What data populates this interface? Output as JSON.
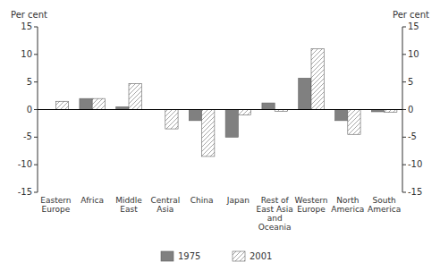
{
  "chart_data": {
    "type": "bar",
    "categories": [
      "Eastern\nEurope",
      "Africa",
      "Middle\nEast",
      "Central\nAsia",
      "China",
      "Japan",
      "Rest of\nEast Asia\nand\nOceania",
      "Western\nEurope",
      "North\nAmerica",
      "South\nAmerica"
    ],
    "series": [
      {
        "name": "1975",
        "color": "#808080",
        "values": [
          0.0,
          2.0,
          0.5,
          0.0,
          -2.0,
          -5.0,
          1.2,
          5.7,
          -2.0,
          -0.4
        ]
      },
      {
        "name": "2001",
        "color": "#909090",
        "values": [
          1.5,
          2.0,
          4.7,
          -3.5,
          -8.5,
          -1.0,
          -0.3,
          11.0,
          -4.5,
          -0.5
        ]
      }
    ],
    "ylabel": "Per cent",
    "y2label": "Per cent",
    "ylim": [
      -15,
      15
    ],
    "yticks": [
      -15,
      -10,
      -5,
      0,
      5,
      10,
      15
    ],
    "y2lim": [
      -15,
      15
    ],
    "y2ticks": [
      -15,
      -10,
      -5,
      0,
      5,
      10,
      15
    ],
    "grid": false,
    "legend": "bottom"
  }
}
